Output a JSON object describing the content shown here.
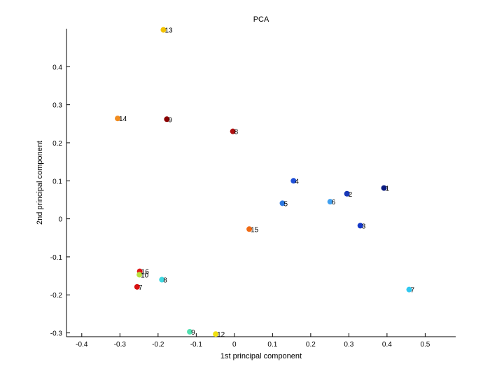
{
  "chart_data": {
    "type": "scatter",
    "title": "PCA",
    "xlabel": "1st principal component",
    "ylabel": "2nd principal component",
    "xlim": [
      -0.44,
      0.58
    ],
    "ylim": [
      -0.31,
      0.5
    ],
    "xticks": [
      -0.4,
      -0.3,
      -0.2,
      -0.1,
      0,
      0.1,
      0.2,
      0.3,
      0.4,
      0.5
    ],
    "yticks": [
      -0.3,
      -0.2,
      -0.1,
      0,
      0.1,
      0.2,
      0.3,
      0.4
    ],
    "xtick_labels": [
      "-0.4",
      "-0.3",
      "-0.2",
      "-0.1",
      "0",
      "0.1",
      "0.2",
      "0.3",
      "0.4",
      "0.5"
    ],
    "ytick_labels": [
      "-0.3",
      "-0.2",
      "-0.1",
      "0",
      "0.1",
      "0.2",
      "0.3",
      "0.4"
    ],
    "grid": false,
    "points": [
      {
        "x": -0.186,
        "y": 0.497,
        "label": "13",
        "color": "#f2c200"
      },
      {
        "x": -0.306,
        "y": 0.264,
        "label": "14",
        "color": "#f28c1e"
      },
      {
        "x": -0.177,
        "y": 0.262,
        "label": "9",
        "color": "#8b0000"
      },
      {
        "x": -0.004,
        "y": 0.23,
        "label": "8",
        "color": "#b01010"
      },
      {
        "x": 0.155,
        "y": 0.1,
        "label": "4",
        "color": "#2050d8"
      },
      {
        "x": 0.392,
        "y": 0.081,
        "label": "1",
        "color": "#0a1a80"
      },
      {
        "x": 0.295,
        "y": 0.066,
        "label": "2",
        "color": "#1838b8"
      },
      {
        "x": 0.251,
        "y": 0.045,
        "label": "6",
        "color": "#40a0f0"
      },
      {
        "x": 0.126,
        "y": 0.041,
        "label": "5",
        "color": "#2c78e0"
      },
      {
        "x": 0.33,
        "y": -0.018,
        "label": "3",
        "color": "#1438c8"
      },
      {
        "x": 0.039,
        "y": -0.027,
        "label": "15",
        "color": "#f06a14"
      },
      {
        "x": 0.458,
        "y": -0.186,
        "label": "7",
        "color": "#30c8f0"
      },
      {
        "x": -0.248,
        "y": -0.138,
        "label": "16",
        "color": "#e01818"
      },
      {
        "x": -0.249,
        "y": -0.147,
        "label": "10",
        "color": "#b8e040"
      },
      {
        "x": -0.19,
        "y": -0.16,
        "label": "8",
        "color": "#40d8e0"
      },
      {
        "x": -0.255,
        "y": -0.179,
        "label": "7",
        "color": "#d81010"
      },
      {
        "x": -0.117,
        "y": -0.297,
        "label": "9",
        "color": "#50e0b0"
      },
      {
        "x": -0.049,
        "y": -0.303,
        "label": "12",
        "color": "#f0e010"
      }
    ]
  }
}
